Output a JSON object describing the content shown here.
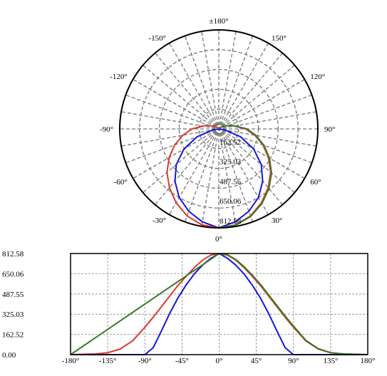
{
  "chart_data": [
    {
      "type": "polar",
      "angle_tick_labels": [
        "±180°",
        "150°",
        "120°",
        "90°",
        "60°",
        "30°",
        "0°",
        "-30°",
        "-60°",
        "-90°",
        "-120°",
        "-150°"
      ],
      "radial_tick_labels": [
        "162.52",
        "325.03",
        "487.55",
        "650.06",
        "812.58"
      ],
      "r_max": 812.58,
      "grid": true,
      "series": [
        {
          "color": "#1515e0",
          "angles": [
            -90,
            -80,
            -70,
            -60,
            -50,
            -40,
            -30,
            -20,
            -10,
            0,
            10,
            20,
            30,
            40,
            50,
            60,
            70,
            80,
            90
          ],
          "values": [
            0,
            55,
            190,
            330,
            455,
            560,
            650,
            720,
            775,
            812.58,
            775,
            720,
            650,
            560,
            455,
            330,
            190,
            55,
            0
          ]
        },
        {
          "color": "#d93a2e",
          "angles": [
            -180,
            -165,
            -150,
            -135,
            -120,
            -105,
            -90,
            -80,
            -70,
            -60,
            -50,
            -40,
            -30,
            -20,
            -10,
            0,
            10,
            20,
            30,
            40,
            50,
            60,
            70,
            80,
            90,
            105,
            120,
            135,
            150,
            165,
            180
          ],
          "values": [
            0,
            3,
            6,
            15,
            45,
            110,
            220,
            300,
            385,
            470,
            555,
            630,
            700,
            760,
            800,
            812.58,
            800,
            760,
            700,
            630,
            555,
            470,
            385,
            300,
            220,
            110,
            45,
            15,
            6,
            3,
            0
          ]
        },
        {
          "color": "#3a7a2a",
          "angles": [
            0,
            10,
            20,
            30,
            40,
            50,
            60,
            70,
            80,
            90,
            105,
            120,
            135,
            150,
            165,
            180
          ],
          "values": [
            812.58,
            803,
            765,
            708,
            640,
            565,
            480,
            395,
            310,
            230,
            115,
            48,
            16,
            6,
            3,
            0
          ]
        }
      ]
    },
    {
      "type": "line",
      "x_tick_labels": [
        "-180°",
        "-135°",
        "-90°",
        "-45°",
        "0°",
        "45°",
        "90°",
        "135°",
        "180°"
      ],
      "y_tick_labels": [
        "812.58",
        "650.06",
        "487.55",
        "325.03",
        "162.52",
        "0.00"
      ],
      "xlim": [
        -180,
        180
      ],
      "ylim": [
        0,
        812.58
      ],
      "grid": true
    }
  ]
}
